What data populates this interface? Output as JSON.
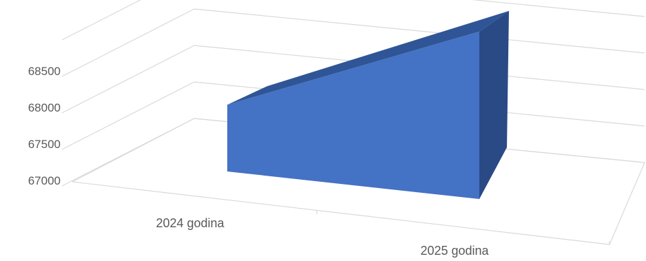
{
  "chart_data": {
    "type": "area",
    "view": "3d",
    "categories": [
      "2024 godina",
      "2025 godina"
    ],
    "series": [
      {
        "values": [
          67590,
          68480
        ]
      }
    ],
    "ylim": [
      67000,
      68500
    ],
    "y_ticks": [
      "67000",
      "67500",
      "68000",
      "68500"
    ],
    "grid": true,
    "legend": "none",
    "colors": {
      "face": "#4472c4",
      "top": "#2f5597",
      "side": "#2a4a85",
      "grid": "#d9d9d9",
      "text": "#595959"
    }
  }
}
